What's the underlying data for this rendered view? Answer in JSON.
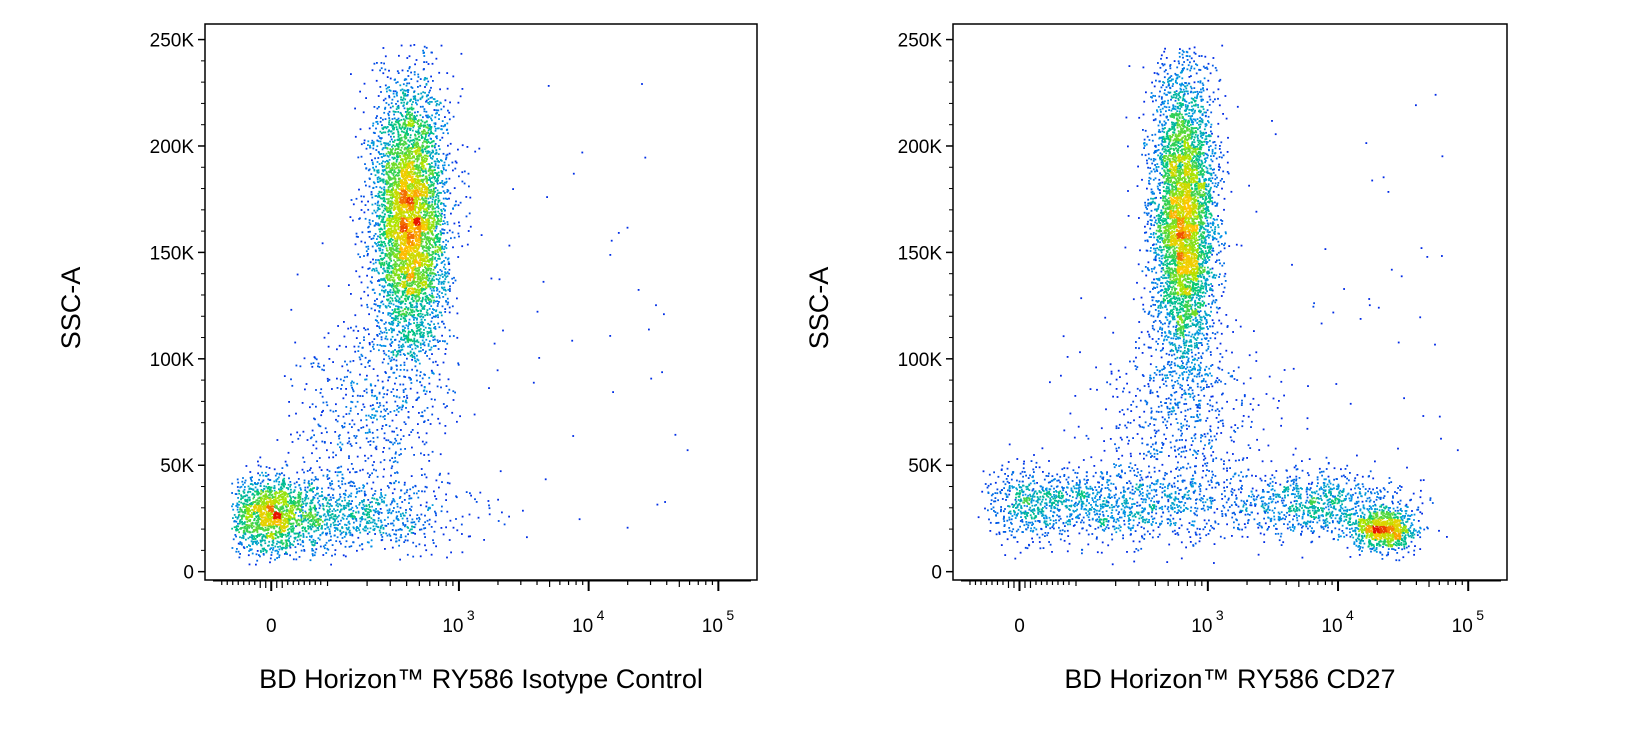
{
  "chart_data": [
    {
      "type": "scatter",
      "subtype": "flow-cytometry-density-dot-plot",
      "xlabel": "BD Horizon™ RY586 Isotype Control",
      "ylabel": "SSC-A",
      "x_scale": "biexponential (linear near 0, log above 10^2)",
      "y_scale": "linear",
      "ylim": [
        0,
        262144
      ],
      "y_ticks": [
        {
          "value": 0,
          "label": "0"
        },
        {
          "value": 50000,
          "label": "50K"
        },
        {
          "value": 100000,
          "label": "100K"
        },
        {
          "value": 150000,
          "label": "150K"
        },
        {
          "value": 200000,
          "label": "200K"
        },
        {
          "value": 250000,
          "label": "250K"
        }
      ],
      "x_ticks": [
        {
          "value": 0,
          "base": "0",
          "exp": ""
        },
        {
          "value": 1000,
          "base": "10",
          "exp": "3"
        },
        {
          "value": 10000,
          "base": "10",
          "exp": "4"
        },
        {
          "value": 100000,
          "base": "10",
          "exp": "5"
        }
      ],
      "color_scale": "density (blue → green → yellow → red)",
      "grid": false,
      "populations": [
        {
          "x_center": 60,
          "y_center": 27000,
          "x_spread_decades": 0.55,
          "y_spread": 9000,
          "events": 2300
        },
        {
          "x_center": 420,
          "y_center": 165000,
          "x_spread_decades": 0.14,
          "y_spread": 32000,
          "events": 5200
        },
        {
          "x_center": 200,
          "y_center": 70000,
          "x_spread_decades": 0.3,
          "y_spread": 22000,
          "events": 500
        }
      ]
    },
    {
      "type": "scatter",
      "subtype": "flow-cytometry-density-dot-plot",
      "xlabel": "BD Horizon™ RY586 CD27",
      "ylabel": "SSC-A",
      "x_scale": "biexponential (linear near 0, log above 10^2)",
      "y_scale": "linear",
      "ylim": [
        0,
        262144
      ],
      "y_ticks": [
        {
          "value": 0,
          "label": "0"
        },
        {
          "value": 50000,
          "label": "50K"
        },
        {
          "value": 100000,
          "label": "100K"
        },
        {
          "value": 150000,
          "label": "150K"
        },
        {
          "value": 200000,
          "label": "200K"
        },
        {
          "value": 250000,
          "label": "250K"
        }
      ],
      "x_ticks": [
        {
          "value": 0,
          "base": "0",
          "exp": ""
        },
        {
          "value": 1000,
          "base": "10",
          "exp": "3"
        },
        {
          "value": 10000,
          "base": "10",
          "exp": "4"
        },
        {
          "value": 100000,
          "base": "10",
          "exp": "5"
        }
      ],
      "color_scale": "density (blue → green → yellow → red)",
      "grid": false,
      "populations": [
        {
          "x_center": 150,
          "y_center": 32000,
          "x_spread_decades": 0.5,
          "y_spread": 9000,
          "events": 1400
        },
        {
          "x_center": 650,
          "y_center": 165000,
          "x_spread_decades": 0.12,
          "y_spread": 35000,
          "events": 5000
        },
        {
          "x_center": 600,
          "y_center": 70000,
          "x_spread_decades": 0.35,
          "y_spread": 22000,
          "events": 600
        },
        {
          "x_center": 6500,
          "y_center": 32000,
          "x_spread_decades": 0.35,
          "y_spread": 8000,
          "events": 900
        },
        {
          "x_center": 22000,
          "y_center": 20000,
          "x_spread_decades": 0.12,
          "y_spread": 5000,
          "events": 900
        }
      ]
    }
  ]
}
